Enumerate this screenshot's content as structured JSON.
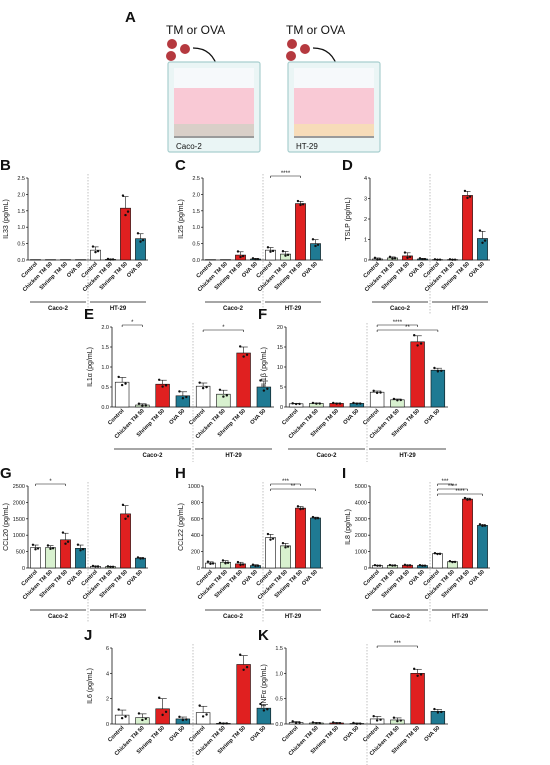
{
  "schematic": {
    "label": "A",
    "treatments": [
      "TM or OVA",
      "TM or OVA"
    ],
    "cells": [
      "Caco-2",
      "HT-29"
    ]
  },
  "colors": {
    "Control": "#ffffff",
    "Chicken TM 50": "#d8f1cf",
    "Shrimp TM 50": "#e02020",
    "OVA 50": "#1f7a93"
  },
  "chart_data": [
    {
      "label": "B",
      "type": "bar",
      "ylabel": "IL33 (pg/mL)",
      "ylim": [
        0,
        2.5
      ],
      "yticks": [
        "0.0",
        "0.5",
        "1.0",
        "1.5",
        "2.0",
        "2.5"
      ],
      "categories": [
        "Control",
        "Chicken TM 50",
        "Shrimp TM 50",
        "OVA 50"
      ],
      "groups": [
        "Caco-2",
        "HT-29"
      ],
      "series": [
        {
          "values": [
            0,
            0,
            0,
            0
          ],
          "errors": [
            0,
            0,
            0,
            0
          ]
        },
        {
          "values": [
            0.3,
            0.02,
            1.58,
            0.65
          ],
          "errors": [
            0.1,
            0.01,
            0.35,
            0.15
          ]
        }
      ],
      "significance": []
    },
    {
      "label": "C",
      "type": "bar",
      "ylabel": "IL25 (pg/mL)",
      "ylim": [
        0,
        2.5
      ],
      "yticks": [
        "0.0",
        "0.5",
        "1.0",
        "1.5",
        "2.0",
        "2.5"
      ],
      "categories": [
        "Control",
        "Chicken TM 50",
        "Shrimp TM 50",
        "OVA 50"
      ],
      "groups": [
        "Caco-2",
        "HT-29"
      ],
      "series": [
        {
          "values": [
            0,
            0,
            0.15,
            0.03
          ],
          "errors": [
            0,
            0,
            0.1,
            0.02
          ]
        },
        {
          "values": [
            0.3,
            0.18,
            1.72,
            0.5
          ],
          "errors": [
            0.08,
            0.08,
            0.07,
            0.12
          ]
        }
      ],
      "significance": [
        {
          "group": 1,
          "from": 0,
          "to": 2,
          "text": "****"
        }
      ]
    },
    {
      "label": "D",
      "type": "bar",
      "ylabel": "TSLP (pg/mL)",
      "ylim": [
        0,
        4
      ],
      "yticks": [
        "0",
        "1",
        "2",
        "3",
        "4"
      ],
      "categories": [
        "Control",
        "Chicken TM 50",
        "Shrimp TM 50",
        "OVA 50"
      ],
      "groups": [
        "Caco-2",
        "HT-29"
      ],
      "series": [
        {
          "values": [
            0.05,
            0.1,
            0.2,
            0.05
          ],
          "errors": [
            0.05,
            0.05,
            0.15,
            0.03
          ]
        },
        {
          "values": [
            0.02,
            0.02,
            3.15,
            1.05
          ],
          "errors": [
            0.01,
            0.01,
            0.2,
            0.35
          ]
        }
      ],
      "significance": []
    },
    {
      "label": "E",
      "type": "bar",
      "ylabel": "IL1α (pg/mL)",
      "ylim": [
        0,
        2.0
      ],
      "yticks": [
        "0.0",
        "0.5",
        "1.0",
        "1.5",
        "2.0"
      ],
      "categories": [
        "Control",
        "Chicken TM 50",
        "Shrimp TM 50",
        "OVA 50"
      ],
      "groups": [
        "Caco-2",
        "HT-29"
      ],
      "series": [
        {
          "values": [
            0.62,
            0.05,
            0.57,
            0.28
          ],
          "errors": [
            0.12,
            0.03,
            0.1,
            0.1
          ]
        },
        {
          "values": [
            0.52,
            0.32,
            1.35,
            0.5
          ],
          "errors": [
            0.08,
            0.1,
            0.15,
            0.15
          ]
        }
      ],
      "significance": [
        {
          "group": 0,
          "from": 0,
          "to": 1,
          "text": "*"
        },
        {
          "group": 1,
          "from": 0,
          "to": 2,
          "text": "*"
        }
      ]
    },
    {
      "label": "F",
      "type": "bar",
      "ylabel": "IL1β (pg/mL)",
      "ylim": [
        0,
        20
      ],
      "yticks": [
        "0",
        "5",
        "10",
        "15",
        "20"
      ],
      "categories": [
        "Control",
        "Chicken TM 50",
        "Shrimp TM 50",
        "OVA 50"
      ],
      "groups": [
        "Caco-2",
        "HT-29"
      ],
      "series": [
        {
          "values": [
            0.8,
            0.9,
            0.9,
            0.9
          ],
          "errors": [
            0.1,
            0.1,
            0.1,
            0.1
          ]
        },
        {
          "values": [
            3.7,
            1.8,
            16.3,
            9.2
          ],
          "errors": [
            0.3,
            0.2,
            1.5,
            0.5
          ]
        }
      ],
      "significance": [
        {
          "group": 1,
          "from": 0,
          "to": 2,
          "text": "****"
        },
        {
          "group": 1,
          "from": 0,
          "to": 3,
          "text": "**"
        }
      ]
    },
    {
      "label": "G",
      "type": "bar",
      "ylabel": "CCL20 (pg/mL)",
      "ylim": [
        0,
        2500
      ],
      "yticks": [
        "0",
        "500",
        "1000",
        "1500",
        "2000",
        "2500"
      ],
      "categories": [
        "Control",
        "Chicken TM 50",
        "Shrimp TM 50",
        "OVA 50"
      ],
      "groups": [
        "Caco-2",
        "HT-29"
      ],
      "series": [
        {
          "values": [
            620,
            620,
            860,
            600
          ],
          "errors": [
            80,
            60,
            200,
            100
          ]
        },
        {
          "values": [
            50,
            40,
            1650,
            300
          ],
          "errors": [
            10,
            10,
            250,
            20
          ]
        }
      ],
      "significance": [
        {
          "group": 0,
          "from": 0,
          "to": 2,
          "text": "*"
        }
      ]
    },
    {
      "label": "H",
      "type": "bar",
      "ylabel": "CCL22 (pg/mL)",
      "ylim": [
        0,
        1000
      ],
      "yticks": [
        "0",
        "200",
        "400",
        "600",
        "800",
        "1000"
      ],
      "categories": [
        "Control",
        "Chicken TM 50",
        "Shrimp TM 50",
        "OVA 50"
      ],
      "groups": [
        "Caco-2",
        "HT-29"
      ],
      "series": [
        {
          "values": [
            60,
            70,
            50,
            30
          ],
          "errors": [
            15,
            20,
            20,
            10
          ]
        },
        {
          "values": [
            370,
            270,
            730,
            610
          ],
          "errors": [
            40,
            30,
            20,
            10
          ]
        }
      ],
      "significance": [
        {
          "group": 1,
          "from": 0,
          "to": 2,
          "text": "***"
        },
        {
          "group": 1,
          "from": 0,
          "to": 3,
          "text": "**"
        }
      ]
    },
    {
      "label": "I",
      "type": "bar",
      "ylabel": "IL8 (pg/mL)",
      "ylim": [
        0,
        5000
      ],
      "yticks": [
        "0",
        "1000",
        "2000",
        "3000",
        "4000",
        "5000"
      ],
      "categories": [
        "Control",
        "Chicken TM 50",
        "Shrimp TM 50",
        "OVA 50"
      ],
      "groups": [
        "Caco-2",
        "HT-29"
      ],
      "series": [
        {
          "values": [
            150,
            160,
            170,
            150
          ],
          "errors": [
            20,
            20,
            20,
            20
          ]
        },
        {
          "values": [
            870,
            380,
            4200,
            2600
          ],
          "errors": [
            30,
            30,
            60,
            60
          ]
        }
      ],
      "significance": [
        {
          "group": 1,
          "from": 0,
          "to": 1,
          "text": "***"
        },
        {
          "group": 1,
          "from": 0,
          "to": 2,
          "text": "****"
        },
        {
          "group": 1,
          "from": 0,
          "to": 3,
          "text": "****"
        }
      ]
    },
    {
      "label": "J",
      "type": "bar",
      "ylabel": "IL6 (pg/mL)",
      "ylim": [
        0,
        6
      ],
      "yticks": [
        "0",
        "2",
        "4",
        "6"
      ],
      "categories": [
        "Control",
        "Chicken TM 50",
        "Shrimp TM 50",
        "OVA 50"
      ],
      "groups": [
        "Caco-2",
        "HT-29"
      ],
      "series": [
        {
          "values": [
            0.7,
            0.5,
            1.2,
            0.4
          ],
          "errors": [
            0.4,
            0.3,
            0.8,
            0.15
          ]
        },
        {
          "values": [
            0.9,
            0.05,
            4.7,
            1.25
          ],
          "errors": [
            0.5,
            0.03,
            0.7,
            0.3
          ]
        }
      ],
      "significance": []
    },
    {
      "label": "K",
      "type": "bar",
      "ylabel": "TNFα (pg/mL)",
      "ylim": [
        0,
        1.5
      ],
      "yticks": [
        "0.0",
        "0.5",
        "1.0",
        "1.5"
      ],
      "categories": [
        "Control",
        "Chicken TM 50",
        "Shrimp TM 50",
        "OVA 50"
      ],
      "groups": [
        "Caco-2",
        "HT-29"
      ],
      "series": [
        {
          "values": [
            0.03,
            0.02,
            0.02,
            0.01
          ],
          "errors": [
            0.02,
            0.01,
            0.01,
            0.01
          ]
        },
        {
          "values": [
            0.1,
            0.08,
            1.0,
            0.25
          ],
          "errors": [
            0.05,
            0.04,
            0.08,
            0.04
          ]
        }
      ],
      "significance": [
        {
          "group": 1,
          "from": 0,
          "to": 2,
          "text": "***"
        }
      ]
    }
  ]
}
